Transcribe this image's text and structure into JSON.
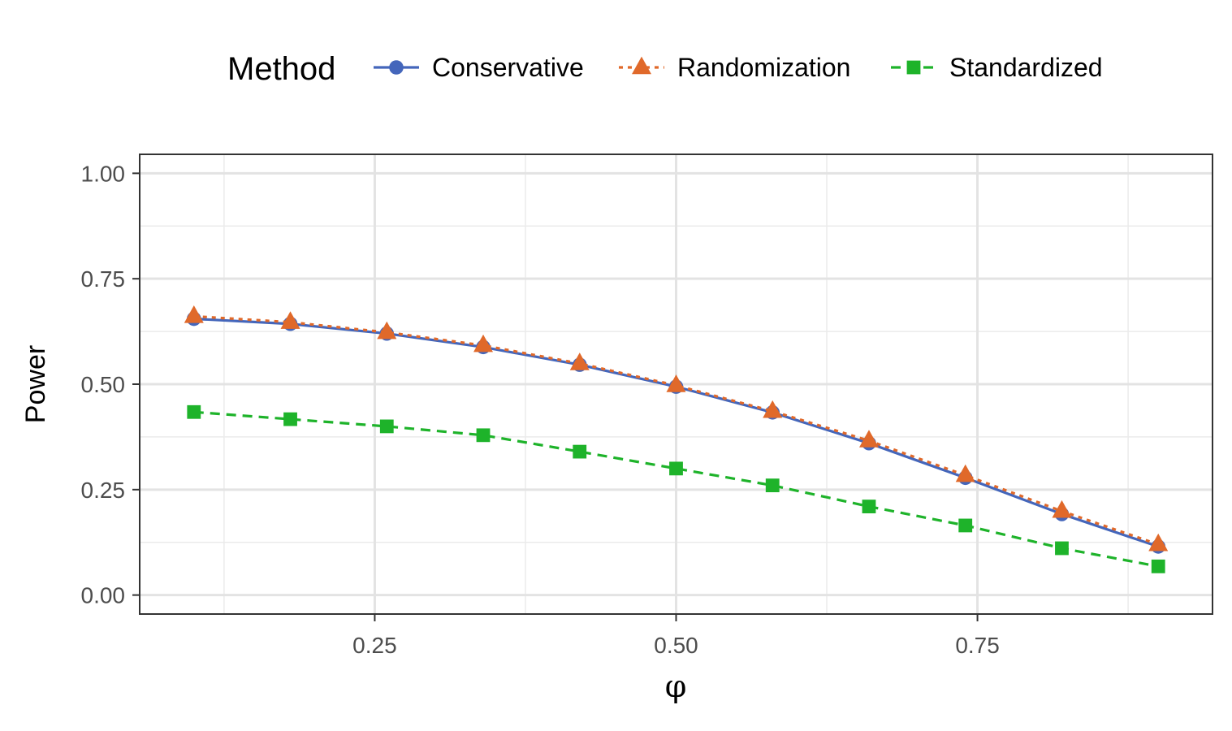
{
  "chart_data": {
    "type": "line",
    "xlabel": "φ",
    "ylabel": "Power",
    "xlim": [
      0.055,
      0.945
    ],
    "ylim": [
      -0.045,
      1.045
    ],
    "x_ticks": [
      0.25,
      0.5,
      0.75
    ],
    "x_tick_labels": [
      "0.25",
      "0.50",
      "0.75"
    ],
    "x_minor_ticks": [
      0.125,
      0.375,
      0.625,
      0.875
    ],
    "y_ticks": [
      0.0,
      0.25,
      0.5,
      0.75,
      1.0
    ],
    "y_tick_labels": [
      "0.00",
      "0.25",
      "0.50",
      "0.75",
      "1.00"
    ],
    "y_minor_ticks": [
      0.125,
      0.375,
      0.625,
      0.875
    ],
    "grid": true,
    "legend": {
      "title": "Method",
      "position": "top"
    },
    "x": [
      0.1,
      0.18,
      0.26,
      0.34,
      0.42,
      0.5,
      0.58,
      0.66,
      0.74,
      0.82,
      0.9
    ],
    "series": [
      {
        "name": "Conservative",
        "color": "#4466bb",
        "marker": "circle",
        "line_style": "solid",
        "values": [
          0.655,
          0.643,
          0.62,
          0.588,
          0.546,
          0.494,
          0.433,
          0.36,
          0.278,
          0.192,
          0.115
        ]
      },
      {
        "name": "Randomization",
        "color": "#e0692a",
        "marker": "triangle",
        "line_style": "dotted",
        "values": [
          0.661,
          0.647,
          0.623,
          0.592,
          0.549,
          0.497,
          0.436,
          0.366,
          0.284,
          0.199,
          0.12
        ]
      },
      {
        "name": "Standardized",
        "color": "#1eb32a",
        "marker": "square",
        "line_style": "dashed",
        "values": [
          0.434,
          0.417,
          0.4,
          0.379,
          0.34,
          0.3,
          0.26,
          0.21,
          0.165,
          0.111,
          0.068
        ]
      }
    ]
  }
}
